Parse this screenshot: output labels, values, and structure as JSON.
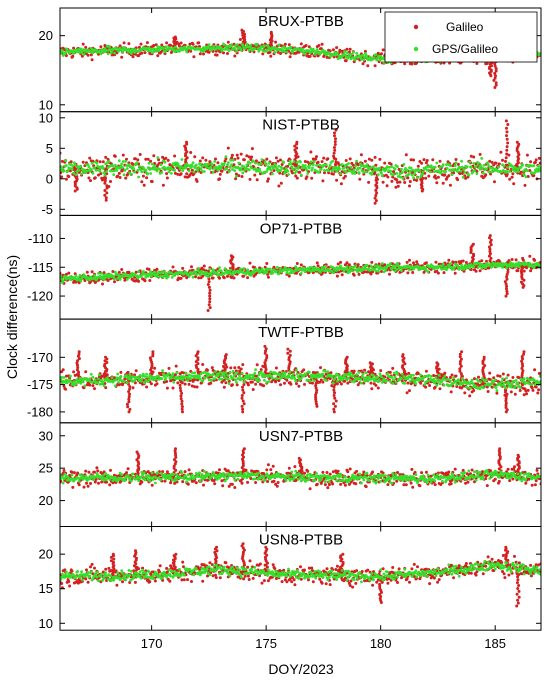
{
  "chart_data": {
    "type": "scatter",
    "xlabel": "DOY/2023",
    "ylabel": "Clock difference(ns)",
    "xlim": [
      166,
      187
    ],
    "xticks": [
      170,
      175,
      180,
      185
    ],
    "legend": {
      "placement": "top-right of first panel",
      "entries": [
        {
          "name": "Galileo",
          "color": "#d42020",
          "marker": "dot"
        },
        {
          "name": "GPS/Galileo",
          "color": "#33e02a",
          "marker": "dot"
        }
      ]
    },
    "panels": [
      {
        "title": "BRUX-PTBB",
        "ylim": [
          9,
          24
        ],
        "yticks": [
          10,
          20
        ],
        "baseline": [
          [
            166,
            17.6
          ],
          [
            170,
            18.0
          ],
          [
            174,
            18.3
          ],
          [
            177,
            17.8
          ],
          [
            179,
            16.9
          ],
          [
            181,
            16.6
          ],
          [
            184,
            16.8
          ],
          [
            187,
            17.2
          ]
        ],
        "noise": 0.5,
        "spikes": [
          {
            "x": 171.0,
            "value": 19.8
          },
          {
            "x": 174.0,
            "value": 20.8
          },
          {
            "x": 175.2,
            "value": 20.5
          },
          {
            "x": 185.0,
            "value": 12.5
          },
          {
            "x": 184.8,
            "value": 14.2
          }
        ]
      },
      {
        "title": "NIST-PTBB",
        "ylim": [
          -6,
          11
        ],
        "yticks": [
          -5,
          0,
          5,
          10
        ],
        "baseline": [
          [
            166,
            1.5
          ],
          [
            170,
            1.8
          ],
          [
            174,
            2.0
          ],
          [
            178,
            1.8
          ],
          [
            181,
            1.2
          ],
          [
            184,
            1.8
          ],
          [
            187,
            1.5
          ]
        ],
        "noise": 1.2,
        "spikes": [
          {
            "x": 166.7,
            "value": -2.0
          },
          {
            "x": 168.0,
            "value": -3.5
          },
          {
            "x": 171.5,
            "value": 6.0
          },
          {
            "x": 176.3,
            "value": 6.0
          },
          {
            "x": 178.0,
            "value": 8.0
          },
          {
            "x": 179.8,
            "value": -4.0
          },
          {
            "x": 185.5,
            "value": 9.5
          },
          {
            "x": 186.0,
            "value": 6.0
          },
          {
            "x": 181.8,
            "value": -2.0
          }
        ]
      },
      {
        "title": "OP71-PTBB",
        "ylim": [
          -124,
          -106
        ],
        "yticks": [
          -120,
          -115,
          -110
        ],
        "baseline": [
          [
            166,
            -117.0
          ],
          [
            170,
            -116.3
          ],
          [
            174,
            -115.8
          ],
          [
            178,
            -115.3
          ],
          [
            182,
            -115.0
          ],
          [
            186,
            -114.5
          ],
          [
            187,
            -114.5
          ]
        ],
        "noise": 0.6,
        "spikes": [
          {
            "x": 172.5,
            "value": -122.5
          },
          {
            "x": 173.5,
            "value": -113.0
          },
          {
            "x": 184.0,
            "value": -111.0
          },
          {
            "x": 184.8,
            "value": -109.5
          },
          {
            "x": 185.5,
            "value": -120.0
          },
          {
            "x": 186.2,
            "value": -118.5
          }
        ]
      },
      {
        "title": "TWTF-PTBB",
        "ylim": [
          -182,
          -163
        ],
        "yticks": [
          -180,
          -175,
          -170
        ],
        "baseline": [
          [
            166,
            -174.5
          ],
          [
            170,
            -173.8
          ],
          [
            174,
            -173.5
          ],
          [
            178,
            -173.5
          ],
          [
            182,
            -174.0
          ],
          [
            184,
            -175.0
          ],
          [
            187,
            -174.5
          ]
        ],
        "noise": 1.0,
        "spikes": [
          {
            "x": 166.8,
            "value": -169.0
          },
          {
            "x": 168.0,
            "value": -170.0
          },
          {
            "x": 169.0,
            "value": -180.0
          },
          {
            "x": 170.0,
            "value": -169.0
          },
          {
            "x": 171.3,
            "value": -180.0
          },
          {
            "x": 172.0,
            "value": -169.0
          },
          {
            "x": 173.2,
            "value": -169.5
          },
          {
            "x": 174.0,
            "value": -180.0
          },
          {
            "x": 175.0,
            "value": -168.0
          },
          {
            "x": 176.0,
            "value": -168.5
          },
          {
            "x": 177.2,
            "value": -179.0
          },
          {
            "x": 178.0,
            "value": -180.0
          },
          {
            "x": 178.5,
            "value": -170.0
          },
          {
            "x": 179.6,
            "value": -171.0
          },
          {
            "x": 181.0,
            "value": -169.5
          },
          {
            "x": 182.5,
            "value": -171.0
          },
          {
            "x": 183.5,
            "value": -169.0
          },
          {
            "x": 184.5,
            "value": -170.0
          },
          {
            "x": 185.5,
            "value": -180.0
          },
          {
            "x": 186.2,
            "value": -169.0
          }
        ]
      },
      {
        "title": "USN7-PTBB",
        "ylim": [
          16,
          32
        ],
        "yticks": [
          20,
          25,
          30
        ],
        "baseline": [
          [
            166,
            23.5
          ],
          [
            170,
            23.6
          ],
          [
            174,
            23.8
          ],
          [
            178,
            23.5
          ],
          [
            182,
            23.4
          ],
          [
            185,
            24.0
          ],
          [
            187,
            23.6
          ]
        ],
        "noise": 0.7,
        "spikes": [
          {
            "x": 169.4,
            "value": 27.5
          },
          {
            "x": 171.0,
            "value": 28.0
          },
          {
            "x": 174.0,
            "value": 28.0
          },
          {
            "x": 176.5,
            "value": 26.5
          },
          {
            "x": 185.2,
            "value": 28.0
          },
          {
            "x": 186.0,
            "value": 27.0
          }
        ]
      },
      {
        "title": "USN8-PTBB",
        "ylim": [
          9,
          24
        ],
        "yticks": [
          10,
          15,
          20
        ],
        "baseline": [
          [
            166,
            16.8
          ],
          [
            170,
            17.0
          ],
          [
            173,
            17.8
          ],
          [
            176,
            17.0
          ],
          [
            180,
            16.8
          ],
          [
            183,
            17.5
          ],
          [
            185,
            18.5
          ],
          [
            187,
            17.5
          ]
        ],
        "noise": 0.7,
        "spikes": [
          {
            "x": 168.3,
            "value": 20.0
          },
          {
            "x": 169.3,
            "value": 20.5
          },
          {
            "x": 171.0,
            "value": 20.0
          },
          {
            "x": 172.8,
            "value": 21.0
          },
          {
            "x": 174.0,
            "value": 21.5
          },
          {
            "x": 175.0,
            "value": 21.0
          },
          {
            "x": 178.3,
            "value": 20.0
          },
          {
            "x": 180.0,
            "value": 13.0
          },
          {
            "x": 185.5,
            "value": 21.0
          },
          {
            "x": 186.0,
            "value": 12.5
          }
        ]
      }
    ]
  }
}
